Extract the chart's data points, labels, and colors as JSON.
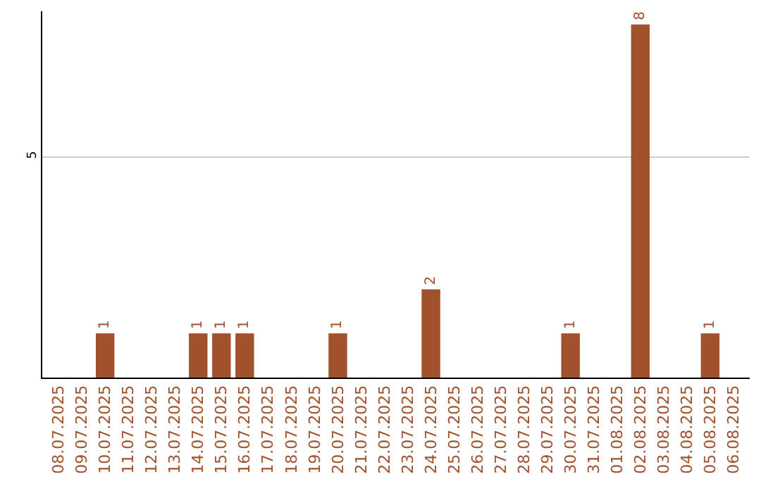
{
  "chart_data": {
    "type": "bar",
    "categories": [
      "08.07.2025",
      "09.07.2025",
      "10.07.2025",
      "11.07.2025",
      "12.07.2025",
      "13.07.2025",
      "14.07.2025",
      "15.07.2025",
      "16.07.2025",
      "17.07.2025",
      "18.07.2025",
      "19.07.2025",
      "20.07.2025",
      "21.07.2025",
      "22.07.2025",
      "23.07.2025",
      "24.07.2025",
      "25.07.2025",
      "26.07.2025",
      "27.07.2025",
      "28.07.2025",
      "29.07.2025",
      "30.07.2025",
      "31.07.2025",
      "01.08.2025",
      "02.08.2025",
      "03.08.2025",
      "04.08.2025",
      "05.08.2025",
      "06.08.2025"
    ],
    "values": [
      0,
      0,
      1,
      0,
      0,
      0,
      1,
      1,
      1,
      0,
      0,
      0,
      1,
      0,
      0,
      0,
      2,
      0,
      0,
      0,
      0,
      0,
      1,
      0,
      0,
      8,
      0,
      0,
      1,
      0
    ],
    "value_labels": [
      null,
      null,
      "1",
      null,
      null,
      null,
      "1",
      "1",
      "1",
      null,
      null,
      null,
      "1",
      null,
      null,
      null,
      "2",
      null,
      null,
      null,
      null,
      null,
      "1",
      null,
      null,
      "8",
      null,
      null,
      "1",
      null
    ],
    "color": "#a0522d",
    "ylim": [
      0,
      8.3
    ],
    "yticks": [
      5
    ],
    "grid": "y",
    "legend": false
  }
}
